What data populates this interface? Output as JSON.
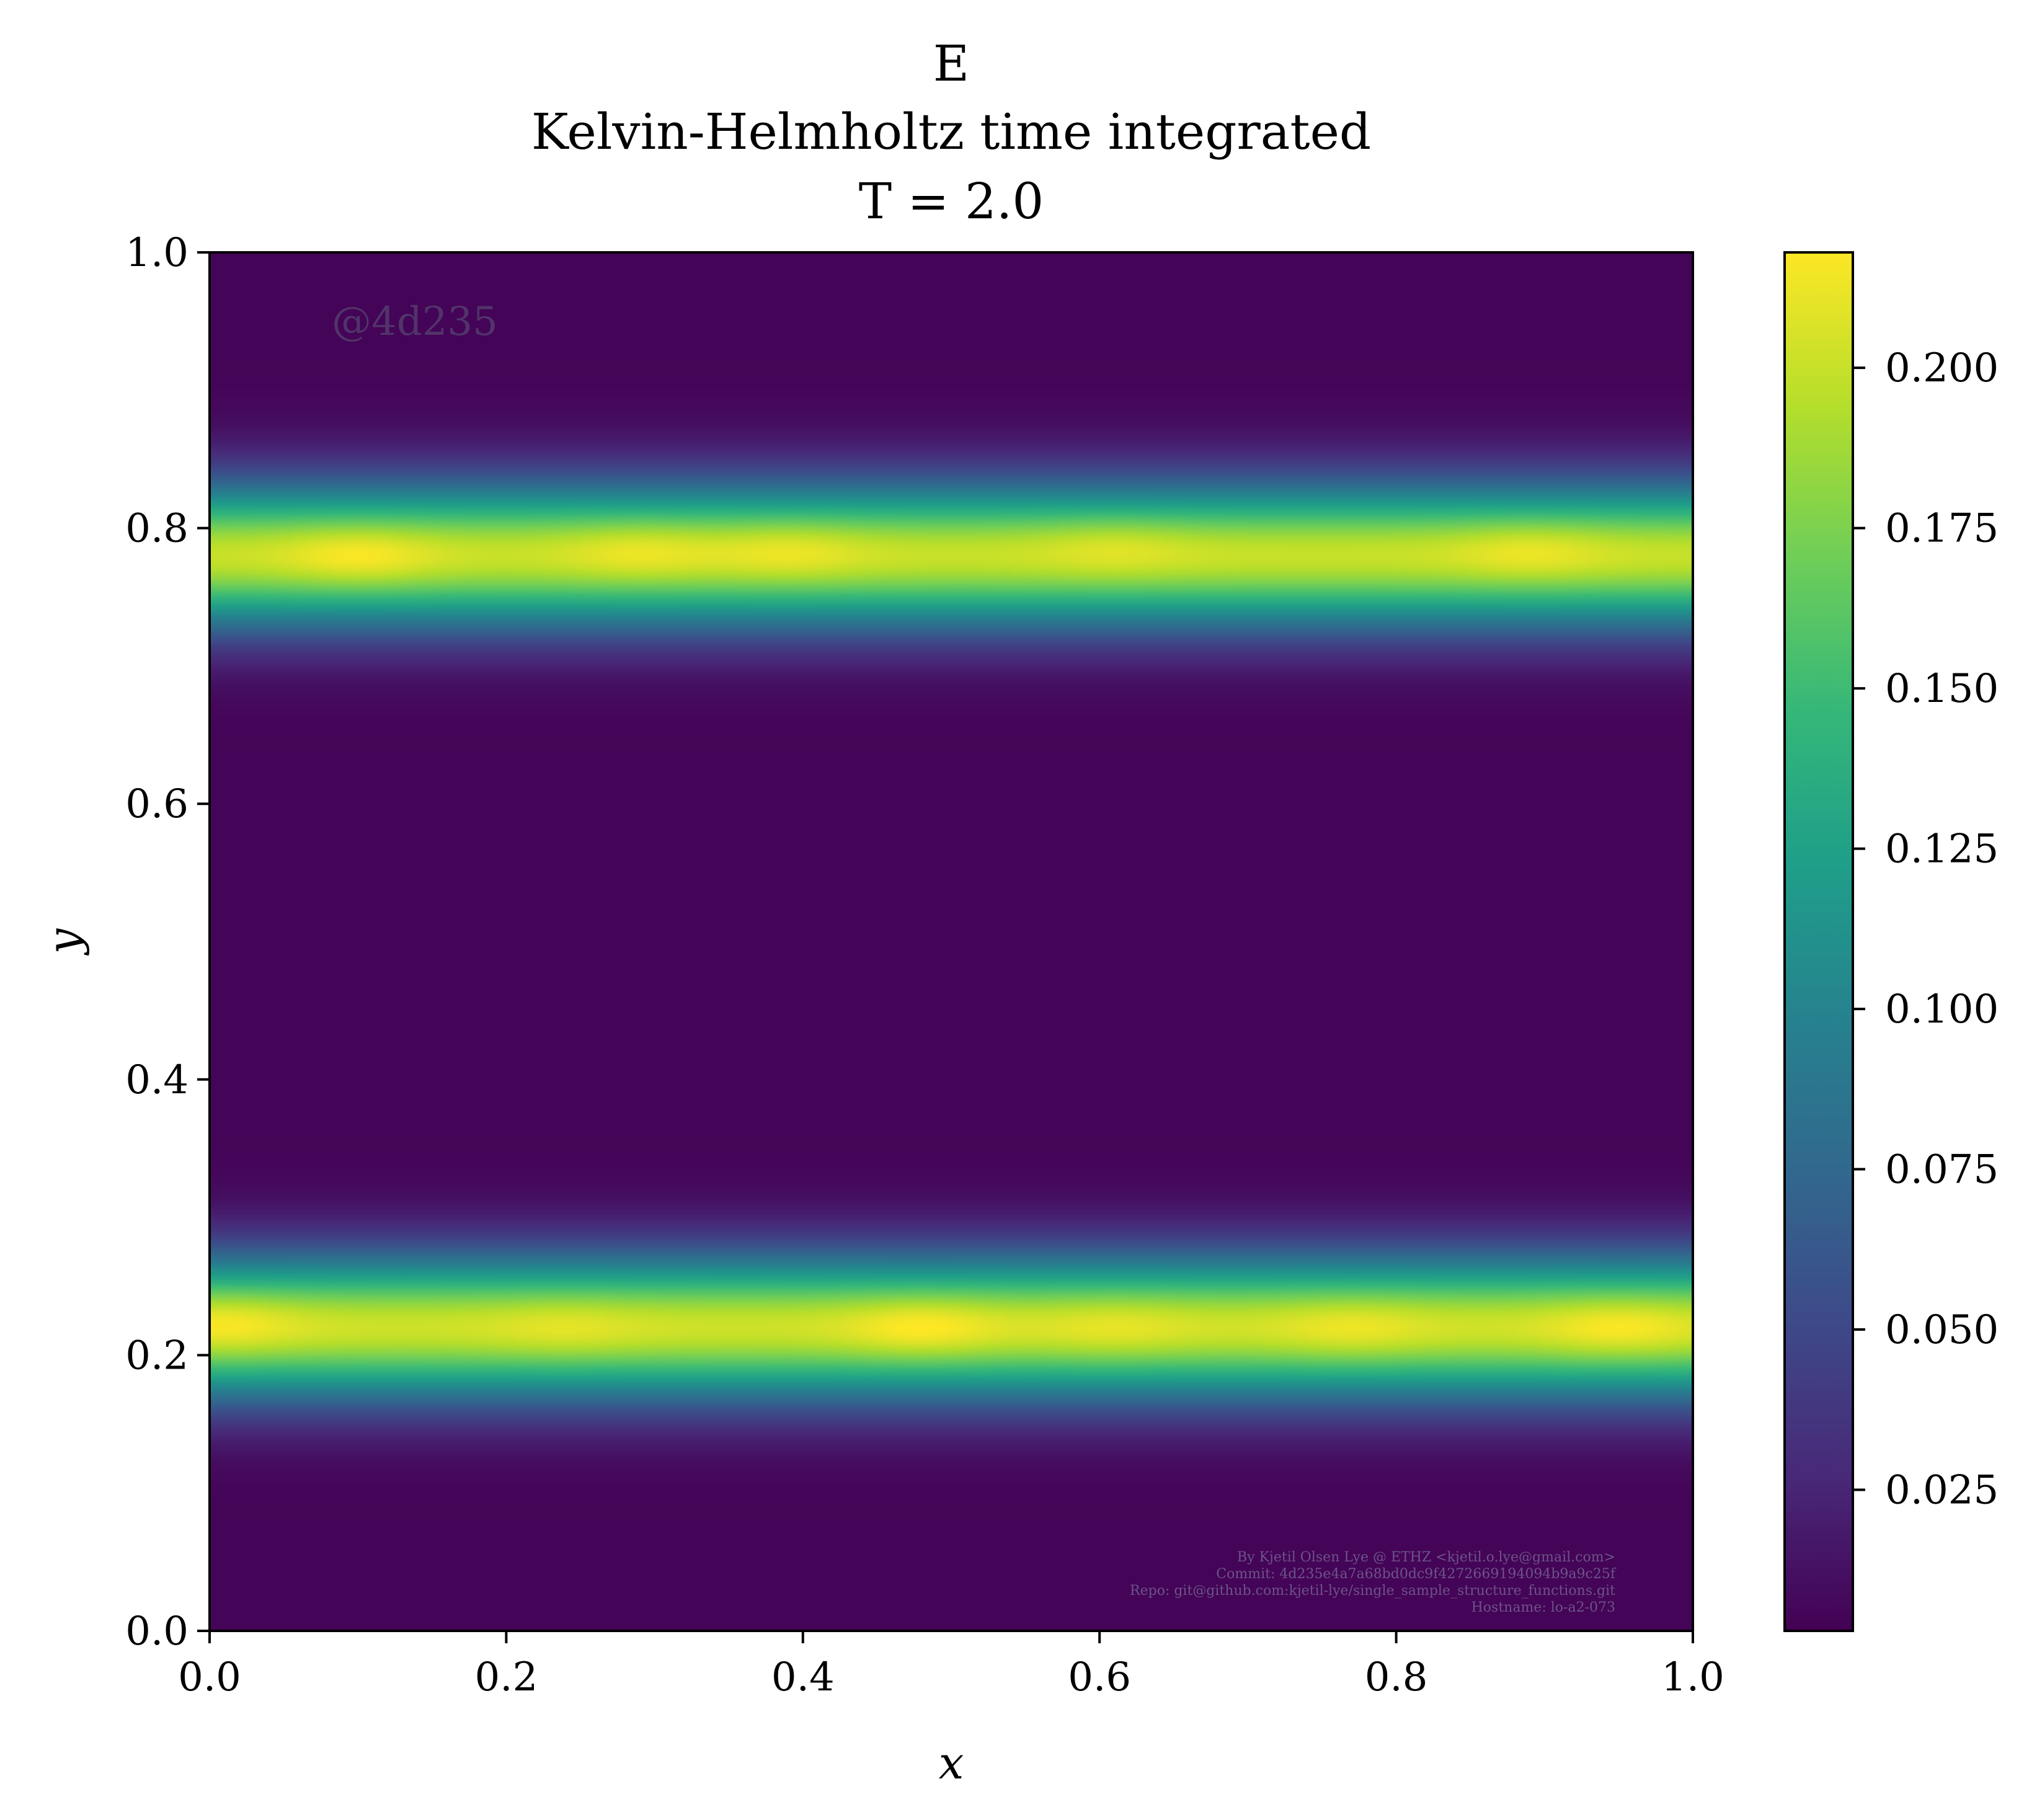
{
  "chart_data": {
    "type": "heatmap",
    "title": "E",
    "subtitle": "Kelvin-Helmholtz time integrated",
    "subtitle2": "T = 2.0",
    "xlabel": "x",
    "ylabel": "y",
    "xlim": [
      0.0,
      1.0
    ],
    "ylim": [
      0.0,
      1.0
    ],
    "xticks": [
      "0.0",
      "0.2",
      "0.4",
      "0.6",
      "0.8",
      "1.0"
    ],
    "yticks": [
      "0.0",
      "0.2",
      "0.4",
      "0.6",
      "0.8",
      "1.0"
    ],
    "colormap": "viridis",
    "colorbar": {
      "min": 0.003,
      "max": 0.218,
      "ticks": [
        "0.025",
        "0.050",
        "0.075",
        "0.100",
        "0.125",
        "0.150",
        "0.175",
        "0.200"
      ]
    },
    "bands": [
      {
        "y_center": 0.78,
        "width": 0.052,
        "peak": 0.195,
        "hotspots": [
          {
            "x": 0.1,
            "y": 0.78,
            "value": 0.212
          },
          {
            "x": 0.29,
            "y": 0.785,
            "value": 0.208
          },
          {
            "x": 0.39,
            "y": 0.785,
            "value": 0.208
          },
          {
            "x": 0.61,
            "y": 0.79,
            "value": 0.205
          },
          {
            "x": 0.72,
            "y": 0.79,
            "value": 0.195
          },
          {
            "x": 0.89,
            "y": 0.785,
            "value": 0.208
          }
        ]
      },
      {
        "y_center": 0.22,
        "width": 0.052,
        "peak": 0.197,
        "hotspots": [
          {
            "x": 0.01,
            "y": 0.225,
            "value": 0.212
          },
          {
            "x": 0.24,
            "y": 0.22,
            "value": 0.205
          },
          {
            "x": 0.48,
            "y": 0.22,
            "value": 0.214
          },
          {
            "x": 0.61,
            "y": 0.22,
            "value": 0.206
          },
          {
            "x": 0.77,
            "y": 0.22,
            "value": 0.208
          },
          {
            "x": 0.95,
            "y": 0.22,
            "value": 0.212
          }
        ]
      }
    ],
    "background_value": 0.005
  },
  "annotations": {
    "watermark": "@4d235",
    "credits": [
      "By Kjetil Olsen Lye @ ETHZ <kjetil.o.lye@gmail.com>",
      "Commit: 4d235e4a7a68bd0dc9f4272669194094b9a9c25f",
      "Repo: git@github.com:kjetil-lye/single_sample_structure_functions.git",
      "Hostname: lo-a2-073"
    ]
  }
}
